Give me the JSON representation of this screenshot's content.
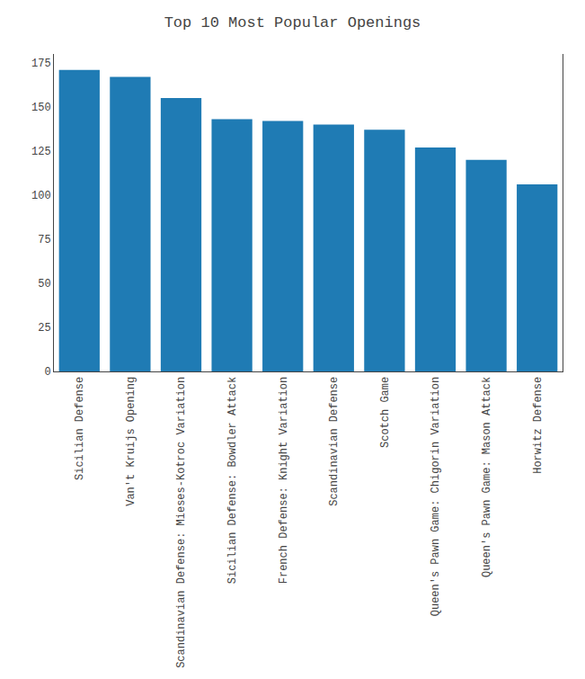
{
  "chart_data": {
    "type": "bar",
    "title": "Top 10 Most Popular Openings",
    "categories": [
      "Sicilian Defense",
      "Van't Kruijs Opening",
      "Scandinavian Defense: Mieses-Kotroc Variation",
      "Sicilian Defense: Bowdler Attack",
      "French Defense: Knight Variation",
      "Scandinavian Defense",
      "Scotch Game",
      "Queen's Pawn Game: Chigorin Variation",
      "Queen's Pawn Game: Mason Attack",
      "Horwitz Defense"
    ],
    "values": [
      171,
      167,
      155,
      143,
      142,
      140,
      137,
      127,
      120,
      106
    ],
    "color": "#1f7bb4",
    "ylim": [
      0,
      180
    ],
    "yticks": [
      0,
      25,
      50,
      75,
      100,
      125,
      150,
      175
    ],
    "grid": false
  }
}
